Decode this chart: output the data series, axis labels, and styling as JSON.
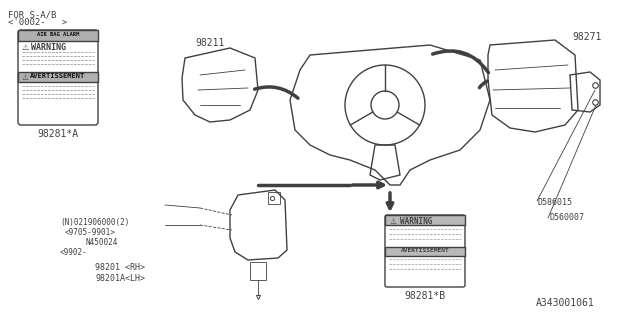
{
  "bg_color": "#ffffff",
  "line_color": "#404040",
  "thin_line": 0.6,
  "medium_line": 1.0,
  "thick_line": 2.5,
  "fig_width": 6.4,
  "fig_height": 3.2,
  "dpi": 100,
  "title_ref": "A343001061",
  "top_note": "FOR S-A/B",
  "top_note2": "<'0002-   >",
  "label_98211": "98211",
  "label_98271": "98271",
  "label_98281A": "98281*A",
  "label_98281B": "98281*B",
  "label_98201": "98201 <RH>",
  "label_98201A": "98201A<LH>",
  "label_N021906": "(N)021906000(2)",
  "label_9705": "<9705-9901>",
  "label_N450024": "N450024",
  "label_9902": "<9902-",
  "label_D586015": "D586015",
  "label_D560007": "D560007",
  "warn_title1": "WARNING",
  "warn_title2": "AVERTISSEMENT",
  "warn_title3": "WARNING",
  "warn_title4": "AVERTISSEMENT"
}
